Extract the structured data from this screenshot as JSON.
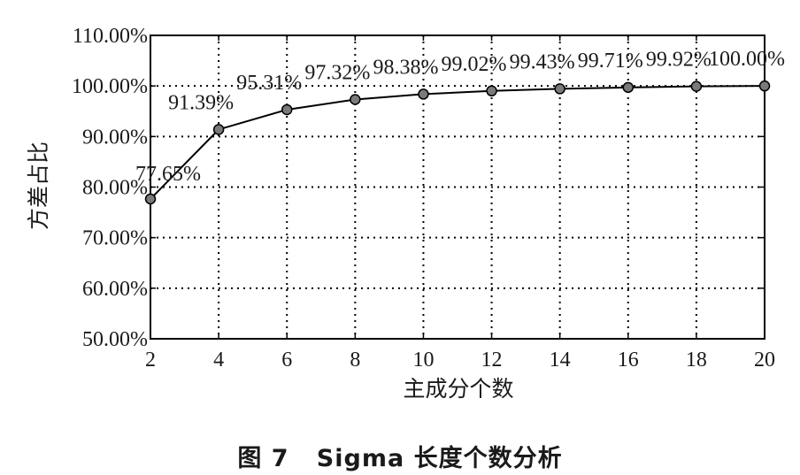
{
  "caption": "图 7   Sigma 长度个数分析",
  "chart_data": {
    "type": "line",
    "title": "",
    "xlabel": "主成分个数",
    "ylabel": "方差占比",
    "x": [
      2,
      4,
      6,
      8,
      10,
      12,
      14,
      16,
      18,
      20
    ],
    "xlim": [
      2,
      20
    ],
    "ylim": [
      50,
      110
    ],
    "x_ticks": [
      "2",
      "4",
      "6",
      "8",
      "10",
      "12",
      "14",
      "16",
      "18",
      "20"
    ],
    "y_ticks": [
      "50.00%",
      "60.00%",
      "70.00%",
      "80.00%",
      "90.00%",
      "100.00%",
      "110.00%"
    ],
    "y_tick_values": [
      50,
      60,
      70,
      80,
      90,
      100,
      110
    ],
    "grid": true,
    "series": [
      {
        "values": [
          77.65,
          91.39,
          95.31,
          97.32,
          98.38,
          99.02,
          99.43,
          99.71,
          99.92,
          100.0
        ],
        "labels": [
          "77.65%",
          "91.39%",
          "95.31%",
          "97.32%",
          "98.38%",
          "99.02%",
          "99.43%",
          "99.71%",
          "99.92%",
          "100.00%"
        ]
      }
    ],
    "colors": {
      "line": "#000000",
      "marker_fill": "#7a7a7a",
      "grid": "#000000"
    }
  }
}
